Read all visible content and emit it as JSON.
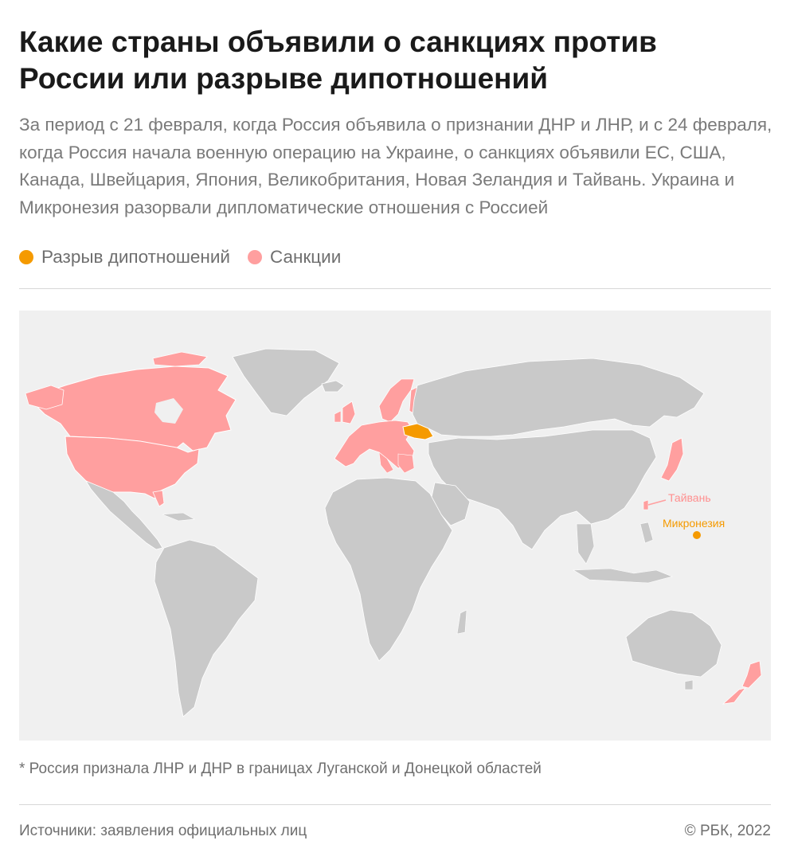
{
  "title": "Какие страны объявили о санкциях против России или разрыве дипотношений",
  "subtitle": "За период с 21 февраля, когда Россия объявила о признании ДНР и ЛНР, и с 24 февраля, когда Россия начала военную операцию на Украине, о санкциях объявили ЕС, США, Канада, Швейцария, Япония, Великобритания, Новая Зеландия и Тайвань. Украина и Микронезия разорвали дипломатические отношения с Россией",
  "legend": [
    {
      "label": "Разрыв дипотношений",
      "color": "#f59a00"
    },
    {
      "label": "Санкции",
      "color": "#ff9f9f"
    }
  ],
  "colors": {
    "land": "#c9c9c9",
    "ocean": "#f0f0f0",
    "sanctions": "#ff9f9f",
    "break": "#f59a00",
    "borders": "#ffffff"
  },
  "map": {
    "label_taiwan": "Тайвань",
    "label_micronesia": "Микронезия",
    "asterisk": "*"
  },
  "footnote": "* Россия признала ЛНР и ДНР в границах Луганской и Донецкой областей",
  "source": "Источники: заявления официальных лиц",
  "copyright": "© РБК, 2022"
}
